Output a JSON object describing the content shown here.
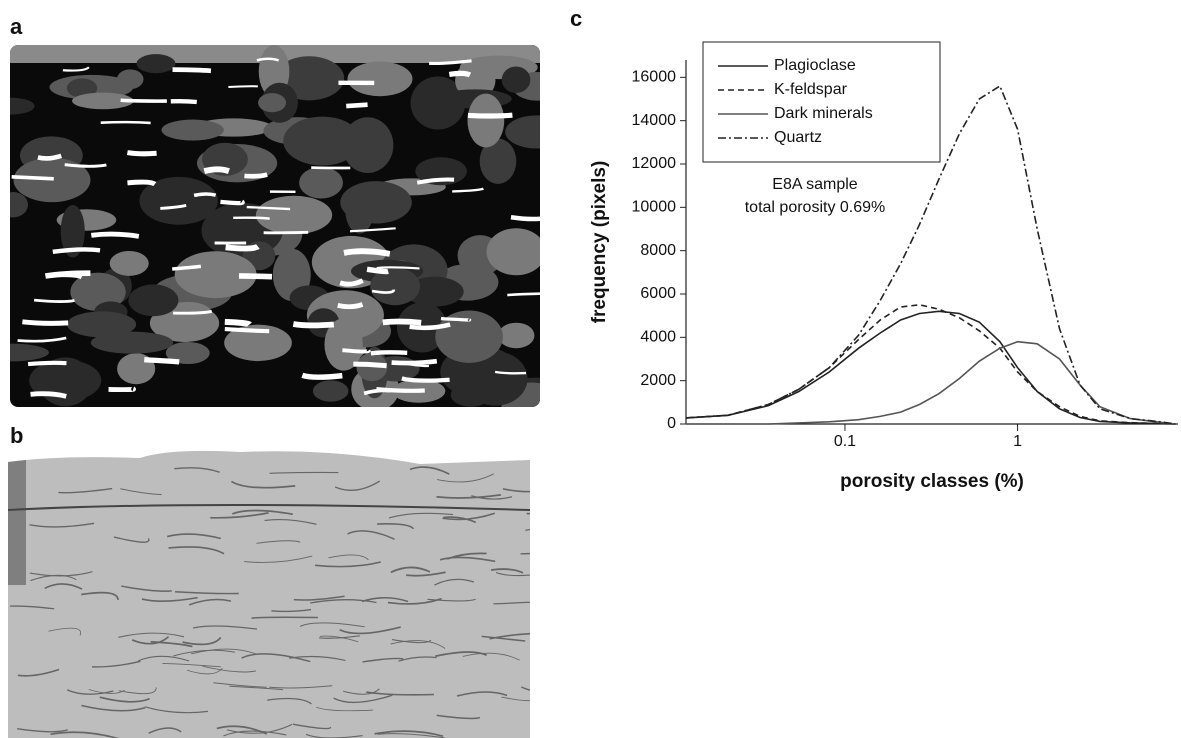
{
  "panel_labels": [
    "a",
    "b",
    "c"
  ],
  "chart_data": {
    "type": "line",
    "xlabel": "porosity classes (%)",
    "ylabel": "frequency (pixels)",
    "annotations": [
      "E8A sample",
      "total porosity 0.69%"
    ],
    "log_x": true,
    "xlim": [
      0.012,
      8.5
    ],
    "xticks": [
      0.1,
      1
    ],
    "ylim": [
      0,
      16800
    ],
    "yticks": [
      0,
      2000,
      4000,
      6000,
      8000,
      10000,
      12000,
      14000,
      16000
    ],
    "x": [
      0.012,
      0.021,
      0.036,
      0.054,
      0.081,
      0.12,
      0.16,
      0.21,
      0.27,
      0.35,
      0.46,
      0.6,
      0.79,
      1.0,
      1.3,
      1.75,
      2.3,
      3.0,
      4.5,
      6.7,
      8.2
    ],
    "series": [
      {
        "name": "Plagioclase",
        "color": "#222222",
        "dash": "none",
        "values": [
          280,
          400,
          850,
          1500,
          2400,
          3500,
          4200,
          4800,
          5100,
          5200,
          5100,
          4700,
          3800,
          2600,
          1500,
          700,
          300,
          120,
          50,
          20,
          0
        ]
      },
      {
        "name": "K-feldspar",
        "color": "#222222",
        "dash": "6 4",
        "values": [
          280,
          400,
          900,
          1600,
          2600,
          3900,
          4800,
          5400,
          5500,
          5300,
          4900,
          4300,
          3500,
          2400,
          1500,
          800,
          350,
          150,
          60,
          20,
          0
        ]
      },
      {
        "name": "Dark minerals",
        "color": "#555555",
        "dash": "none",
        "values": [
          0,
          0,
          0,
          50,
          100,
          200,
          350,
          550,
          900,
          1400,
          2100,
          2900,
          3500,
          3800,
          3700,
          3000,
          1800,
          800,
          250,
          80,
          0
        ]
      },
      {
        "name": "Quartz",
        "color": "#222222",
        "dash": "8 3 2 3",
        "values": [
          280,
          400,
          900,
          1600,
          2600,
          4100,
          5700,
          7400,
          9200,
          11300,
          13400,
          15000,
          15600,
          13600,
          9000,
          4400,
          1800,
          700,
          250,
          100,
          0
        ]
      }
    ],
    "legend": "upper-left"
  }
}
